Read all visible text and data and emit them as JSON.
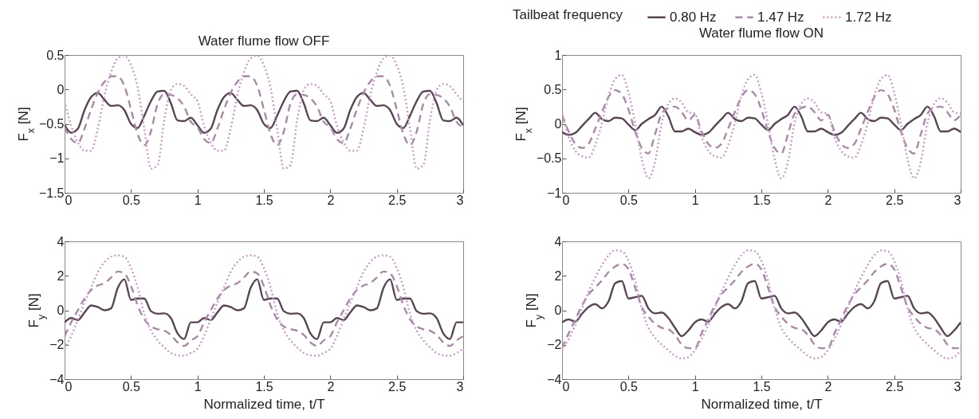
{
  "chart_data": [
    {
      "type": "line",
      "title": "Water flume flow OFF",
      "ylabel": "F$_{x}$ [N]",
      "legend": "top right",
      "legend_title": "Tailbeat frequency",
      "xlim": [
        0,
        3
      ],
      "xticks": [
        0,
        0.5,
        1,
        1.5,
        2,
        2.5,
        3
      ],
      "ylim": [
        -1.5,
        0.5
      ],
      "yticks": [
        -1.5,
        -1,
        -0.5,
        0,
        0.5
      ],
      "grid": false,
      "x": [
        0,
        0.05,
        0.1,
        0.15,
        0.2,
        0.25,
        0.3,
        0.35,
        0.4,
        0.45,
        0.5,
        0.55,
        0.6,
        0.65,
        0.7,
        0.75,
        0.8,
        0.85,
        0.9,
        0.95,
        1,
        1.05,
        1.1,
        1.15,
        1.2,
        1.25,
        1.3,
        1.35,
        1.4,
        1.45,
        1.5,
        1.55,
        1.6,
        1.65,
        1.7,
        1.75,
        1.8,
        1.85,
        1.9,
        1.95,
        2,
        2.05,
        2.1,
        2.15,
        2.2,
        2.25,
        2.3,
        2.35,
        2.4,
        2.45,
        2.5,
        2.55,
        2.6,
        2.65,
        2.7,
        2.75,
        2.8,
        2.85,
        2.9,
        2.95,
        3
      ],
      "series": [
        {
          "name": "0.80 Hz",
          "color": "#574552",
          "line_style": "solid",
          "values": [
            -0.52,
            -0.63,
            -0.57,
            -0.3,
            -0.11,
            -0.05,
            -0.15,
            -0.24,
            -0.23,
            -0.3,
            -0.5,
            -0.56,
            -0.38,
            -0.17,
            -0.03,
            -0.02,
            -0.2,
            -0.45,
            -0.46,
            -0.41,
            -0.52,
            -0.63,
            -0.57,
            -0.3,
            -0.11,
            -0.05,
            -0.15,
            -0.24,
            -0.23,
            -0.3,
            -0.5,
            -0.56,
            -0.38,
            -0.17,
            -0.03,
            -0.02,
            -0.2,
            -0.45,
            -0.46,
            -0.41,
            -0.52,
            -0.63,
            -0.57,
            -0.3,
            -0.11,
            -0.05,
            -0.15,
            -0.24,
            -0.23,
            -0.3,
            -0.5,
            -0.56,
            -0.38,
            -0.17,
            -0.03,
            -0.02,
            -0.2,
            -0.45,
            -0.46,
            -0.41,
            -0.52
          ]
        },
        {
          "name": "1.47 Hz",
          "color": "#a98aa6",
          "line_style": "dashed",
          "values": [
            -0.55,
            -0.72,
            -0.78,
            -0.57,
            -0.29,
            -0.05,
            0.11,
            0.19,
            0.19,
            0.05,
            -0.29,
            -0.65,
            -0.81,
            -0.61,
            -0.21,
            -0.07,
            -0.08,
            -0.13,
            -0.25,
            -0.47,
            -0.55,
            -0.72,
            -0.78,
            -0.57,
            -0.29,
            -0.05,
            0.11,
            0.19,
            0.19,
            0.05,
            -0.29,
            -0.65,
            -0.81,
            -0.61,
            -0.21,
            -0.07,
            -0.08,
            -0.13,
            -0.25,
            -0.47,
            -0.55,
            -0.72,
            -0.78,
            -0.57,
            -0.29,
            -0.05,
            0.11,
            0.19,
            0.19,
            0.05,
            -0.29,
            -0.65,
            -0.81,
            -0.61,
            -0.21,
            -0.07,
            -0.08,
            -0.13,
            -0.25,
            -0.47,
            -0.55
          ]
        },
        {
          "name": "1.72 Hz",
          "color": "#c99ac9",
          "line_style": "dotted",
          "values": [
            -0.17,
            -0.53,
            -0.77,
            -0.89,
            -0.89,
            -0.57,
            -0.09,
            0.25,
            0.45,
            0.49,
            0.35,
            0.03,
            -0.57,
            -1.15,
            -1.1,
            -0.45,
            -0.01,
            0.08,
            0.05,
            -0.07,
            -0.17,
            -0.53,
            -0.77,
            -0.89,
            -0.89,
            -0.57,
            -0.09,
            0.25,
            0.45,
            0.49,
            0.35,
            0.03,
            -0.57,
            -1.15,
            -1.1,
            -0.45,
            -0.01,
            0.08,
            0.05,
            -0.07,
            -0.17,
            -0.53,
            -0.77,
            -0.89,
            -0.89,
            -0.57,
            -0.09,
            0.25,
            0.45,
            0.49,
            0.35,
            0.03,
            -0.57,
            -1.15,
            -1.1,
            -0.45,
            -0.01,
            0.08,
            0.05,
            -0.07,
            -0.17
          ]
        }
      ]
    },
    {
      "type": "line",
      "title": "Water flume flow ON",
      "ylabel": "F$_{x}$ [N]",
      "xlim": [
        0,
        3
      ],
      "xticks": [
        0,
        0.5,
        1,
        1.5,
        2,
        2.5,
        3
      ],
      "ylim": [
        -1,
        1
      ],
      "yticks": [
        -1,
        -0.5,
        0,
        0.5,
        1
      ],
      "grid": false,
      "x": [
        0,
        0.05,
        0.1,
        0.15,
        0.2,
        0.25,
        0.3,
        0.35,
        0.4,
        0.45,
        0.5,
        0.55,
        0.6,
        0.65,
        0.7,
        0.75,
        0.8,
        0.85,
        0.9,
        0.95,
        1,
        1.05,
        1.1,
        1.15,
        1.2,
        1.25,
        1.3,
        1.35,
        1.4,
        1.45,
        1.5,
        1.55,
        1.6,
        1.65,
        1.7,
        1.75,
        1.8,
        1.85,
        1.9,
        1.95,
        2,
        2.05,
        2.1,
        2.15,
        2.2,
        2.25,
        2.3,
        2.35,
        2.4,
        2.45,
        2.5,
        2.55,
        2.6,
        2.65,
        2.7,
        2.75,
        2.8,
        2.85,
        2.9,
        2.95,
        3
      ],
      "series": [
        {
          "color": "#574552",
          "line_style": "solid",
          "values": [
            -0.12,
            -0.16,
            -0.13,
            -0.03,
            0.07,
            0.16,
            0.07,
            0.04,
            0.09,
            0.08,
            -0.01,
            -0.09,
            0,
            0.07,
            0.13,
            0.25,
            0.11,
            -0.11,
            -0.11,
            -0.07,
            -0.12,
            -0.16,
            -0.13,
            -0.03,
            0.07,
            0.16,
            0.07,
            0.04,
            0.09,
            0.08,
            -0.01,
            -0.09,
            0,
            0.07,
            0.13,
            0.25,
            0.11,
            -0.11,
            -0.11,
            -0.07,
            -0.12,
            -0.16,
            -0.13,
            -0.03,
            0.07,
            0.16,
            0.07,
            0.04,
            0.09,
            0.08,
            -0.01,
            -0.09,
            0,
            0.07,
            0.13,
            0.25,
            0.11,
            -0.11,
            -0.11,
            -0.07,
            -0.12
          ]
        },
        {
          "color": "#a98aa6",
          "line_style": "dashed",
          "values": [
            0.13,
            -0.11,
            -0.29,
            -0.35,
            -0.29,
            -0.07,
            0.17,
            0.39,
            0.49,
            0.43,
            0.21,
            -0.11,
            -0.35,
            -0.43,
            -0.15,
            0.15,
            0.23,
            0.25,
            0.17,
            0.05,
            0.13,
            -0.11,
            -0.29,
            -0.35,
            -0.29,
            -0.07,
            0.17,
            0.39,
            0.49,
            0.43,
            0.21,
            -0.11,
            -0.35,
            -0.43,
            -0.15,
            0.15,
            0.23,
            0.25,
            0.17,
            0.05,
            0.13,
            -0.11,
            -0.29,
            -0.35,
            -0.29,
            -0.07,
            0.17,
            0.39,
            0.49,
            0.43,
            0.21,
            -0.11,
            -0.35,
            -0.43,
            -0.15,
            0.15,
            0.23,
            0.25,
            0.17,
            0.05,
            0.13
          ]
        },
        {
          "color": "#c99ac9",
          "line_style": "dotted",
          "values": [
            0.15,
            -0.19,
            -0.39,
            -0.47,
            -0.49,
            -0.31,
            0.01,
            0.41,
            0.65,
            0.71,
            0.45,
            0.01,
            -0.51,
            -0.79,
            -0.55,
            0.01,
            0.29,
            0.37,
            0.31,
            0.17,
            0.15,
            -0.19,
            -0.39,
            -0.47,
            -0.49,
            -0.31,
            0.01,
            0.41,
            0.65,
            0.71,
            0.45,
            0.01,
            -0.51,
            -0.79,
            -0.55,
            0.01,
            0.29,
            0.37,
            0.31,
            0.17,
            0.15,
            -0.19,
            -0.39,
            -0.47,
            -0.49,
            -0.31,
            0.01,
            0.41,
            0.65,
            0.71,
            0.45,
            0.01,
            -0.51,
            -0.79,
            -0.55,
            0.01,
            0.29,
            0.37,
            0.31,
            0.17,
            0.15
          ]
        }
      ]
    },
    {
      "type": "line",
      "xlabel": "Normalized time, t/T",
      "ylabel": "F$_{y}$ [N]",
      "xlim": [
        0,
        3
      ],
      "xticks": [
        0,
        0.5,
        1,
        1.5,
        2,
        2.5,
        3
      ],
      "ylim": [
        -4,
        4
      ],
      "yticks": [
        -4,
        -2,
        0,
        2,
        4
      ],
      "grid": false,
      "x": [
        0,
        0.05,
        0.1,
        0.15,
        0.2,
        0.25,
        0.3,
        0.35,
        0.4,
        0.45,
        0.5,
        0.55,
        0.6,
        0.65,
        0.7,
        0.75,
        0.8,
        0.85,
        0.9,
        0.95,
        1,
        1.05,
        1.1,
        1.15,
        1.2,
        1.25,
        1.3,
        1.35,
        1.4,
        1.45,
        1.5,
        1.55,
        1.6,
        1.65,
        1.7,
        1.75,
        1.8,
        1.85,
        1.9,
        1.95,
        2,
        2.05,
        2.1,
        2.15,
        2.2,
        2.25,
        2.3,
        2.35,
        2.4,
        2.45,
        2.5,
        2.55,
        2.6,
        2.65,
        2.7,
        2.75,
        2.8,
        2.85,
        2.9,
        2.95,
        3
      ],
      "series": [
        {
          "color": "#574552",
          "line_style": "solid",
          "values": [
            -0.7,
            -0.45,
            -0.57,
            -0.13,
            0.28,
            0.19,
            0,
            0.11,
            1.3,
            1.8,
            0.6,
            0.68,
            0.68,
            -0.05,
            -0.2,
            -0.18,
            -0.45,
            -1.34,
            -1.67,
            -0.7,
            -0.7,
            -0.45,
            -0.57,
            -0.13,
            0.28,
            0.19,
            0,
            0.11,
            1.3,
            1.8,
            0.6,
            0.68,
            0.68,
            -0.05,
            -0.2,
            -0.18,
            -0.45,
            -1.34,
            -1.67,
            -0.7,
            -0.7,
            -0.45,
            -0.57,
            -0.13,
            0.28,
            0.19,
            0,
            0.11,
            1.3,
            1.8,
            0.6,
            0.68,
            0.68,
            -0.05,
            -0.2,
            -0.18,
            -0.45,
            -1.34,
            -1.67,
            -0.7,
            -0.7
          ]
        },
        {
          "color": "#a98aa6",
          "line_style": "dashed",
          "values": [
            -1.5,
            -0.7,
            0,
            0.68,
            1.17,
            1.44,
            1.57,
            1.9,
            2.25,
            2.14,
            1.41,
            0.28,
            -0.53,
            -0.94,
            -1.1,
            -1.18,
            -1.43,
            -1.86,
            -2.07,
            -1.75,
            -1.5,
            -0.7,
            0,
            0.68,
            1.17,
            1.44,
            1.57,
            1.9,
            2.25,
            2.14,
            1.41,
            0.28,
            -0.53,
            -0.94,
            -1.1,
            -1.18,
            -1.43,
            -1.86,
            -2.07,
            -1.75,
            -1.5,
            -0.7,
            0,
            0.68,
            1.17,
            1.44,
            1.57,
            1.9,
            2.25,
            2.14,
            1.41,
            0.28,
            -0.53,
            -0.94,
            -1.1,
            -1.18,
            -1.43,
            -1.86,
            -2.07,
            -1.75,
            -1.5
          ]
        },
        {
          "color": "#c99ac9",
          "line_style": "dotted",
          "values": [
            -2.23,
            -1.5,
            -0.53,
            0.44,
            1.33,
            2.22,
            2.79,
            3.11,
            3.19,
            3.11,
            2.46,
            1.33,
            -0.21,
            -1.18,
            -1.75,
            -2.15,
            -2.48,
            -2.61,
            -2.64,
            -2.48,
            -2.23,
            -1.5,
            -0.53,
            0.44,
            1.33,
            2.22,
            2.79,
            3.11,
            3.19,
            3.11,
            2.46,
            1.33,
            -0.21,
            -1.18,
            -1.75,
            -2.15,
            -2.48,
            -2.61,
            -2.64,
            -2.48,
            -2.23,
            -1.5,
            -0.53,
            0.44,
            1.33,
            2.22,
            2.79,
            3.11,
            3.19,
            3.11,
            2.46,
            1.33,
            -0.21,
            -1.18,
            -1.75,
            -2.15,
            -2.48,
            -2.61,
            -2.64,
            -2.48,
            -2.23
          ]
        }
      ]
    },
    {
      "type": "line",
      "xlabel": "Normalized time, t/T",
      "ylabel": "F$_{y}$ [N]",
      "xlim": [
        0,
        3
      ],
      "xticks": [
        0,
        0.5,
        1,
        1.5,
        2,
        2.5,
        3
      ],
      "ylim": [
        -4,
        4
      ],
      "yticks": [
        -4,
        -2,
        0,
        2,
        4
      ],
      "grid": false,
      "x": [
        0,
        0.05,
        0.1,
        0.15,
        0.2,
        0.25,
        0.3,
        0.35,
        0.4,
        0.45,
        0.5,
        0.55,
        0.6,
        0.65,
        0.7,
        0.75,
        0.8,
        0.85,
        0.9,
        0.95,
        1,
        1.05,
        1.1,
        1.15,
        1.2,
        1.25,
        1.3,
        1.35,
        1.4,
        1.45,
        1.5,
        1.55,
        1.6,
        1.65,
        1.7,
        1.75,
        1.8,
        1.85,
        1.9,
        1.95,
        2,
        2.05,
        2.1,
        2.15,
        2.2,
        2.25,
        2.3,
        2.35,
        2.4,
        2.45,
        2.5,
        2.55,
        2.6,
        2.65,
        2.7,
        2.75,
        2.8,
        2.85,
        2.9,
        2.95,
        3
      ],
      "series": [
        {
          "color": "#574552",
          "line_style": "solid",
          "values": [
            -0.7,
            -0.53,
            -0.66,
            -0.21,
            0.19,
            0.36,
            0.11,
            0.52,
            1.57,
            1.7,
            0.68,
            0.76,
            0.84,
            0.11,
            -0.18,
            -0.13,
            -0.45,
            -1.02,
            -1.5,
            -1.18,
            -0.7,
            -0.53,
            -0.66,
            -0.21,
            0.19,
            0.36,
            0.11,
            0.52,
            1.57,
            1.7,
            0.68,
            0.76,
            0.84,
            0.11,
            -0.18,
            -0.13,
            -0.45,
            -1.02,
            -1.5,
            -1.18,
            -0.7,
            -0.53,
            -0.66,
            -0.21,
            0.19,
            0.36,
            0.11,
            0.52,
            1.57,
            1.7,
            0.68,
            0.76,
            0.84,
            0.11,
            -0.18,
            -0.13,
            -0.45,
            -1.02,
            -1.5,
            -1.18,
            -0.7
          ]
        },
        {
          "color": "#a98aa6",
          "line_style": "dashed",
          "values": [
            -2.2,
            -1.34,
            -0.53,
            0.28,
            0.92,
            1.33,
            1.73,
            2.22,
            2.54,
            2.7,
            2.38,
            1.33,
            0.19,
            -0.37,
            -0.78,
            -1.02,
            -1.1,
            -1.43,
            -1.99,
            -2.2,
            -2.2,
            -1.34,
            -0.53,
            0.28,
            0.92,
            1.33,
            1.73,
            2.22,
            2.54,
            2.7,
            2.38,
            1.33,
            0.19,
            -0.37,
            -0.78,
            -1.02,
            -1.1,
            -1.43,
            -1.99,
            -2.2,
            -2.2,
            -1.34,
            -0.53,
            0.28,
            0.92,
            1.33,
            1.73,
            2.22,
            2.54,
            2.7,
            2.38,
            1.33,
            0.19,
            -0.37,
            -0.78,
            -1.02,
            -1.1,
            -1.43,
            -1.99,
            -2.2,
            -2.2
          ]
        },
        {
          "color": "#c99ac9",
          "line_style": "dotted",
          "values": [
            -2.32,
            -1.67,
            -0.86,
            0.11,
            1.08,
            1.9,
            2.62,
            3.19,
            3.48,
            3.43,
            2.87,
            1.73,
            0.11,
            -1.02,
            -1.59,
            -1.99,
            -2.32,
            -2.64,
            -2.8,
            -2.72,
            -2.32,
            -1.67,
            -0.86,
            0.11,
            1.08,
            1.9,
            2.62,
            3.19,
            3.48,
            3.43,
            2.87,
            1.73,
            0.11,
            -1.02,
            -1.59,
            -1.99,
            -2.32,
            -2.64,
            -2.8,
            -2.72,
            -2.32,
            -1.67,
            -0.86,
            0.11,
            1.08,
            1.9,
            2.62,
            3.19,
            3.48,
            3.43,
            2.87,
            1.73,
            0.11,
            -1.02,
            -1.59,
            -1.99,
            -2.32,
            -2.64,
            -2.8,
            -2.72,
            -2.32
          ]
        }
      ]
    }
  ]
}
